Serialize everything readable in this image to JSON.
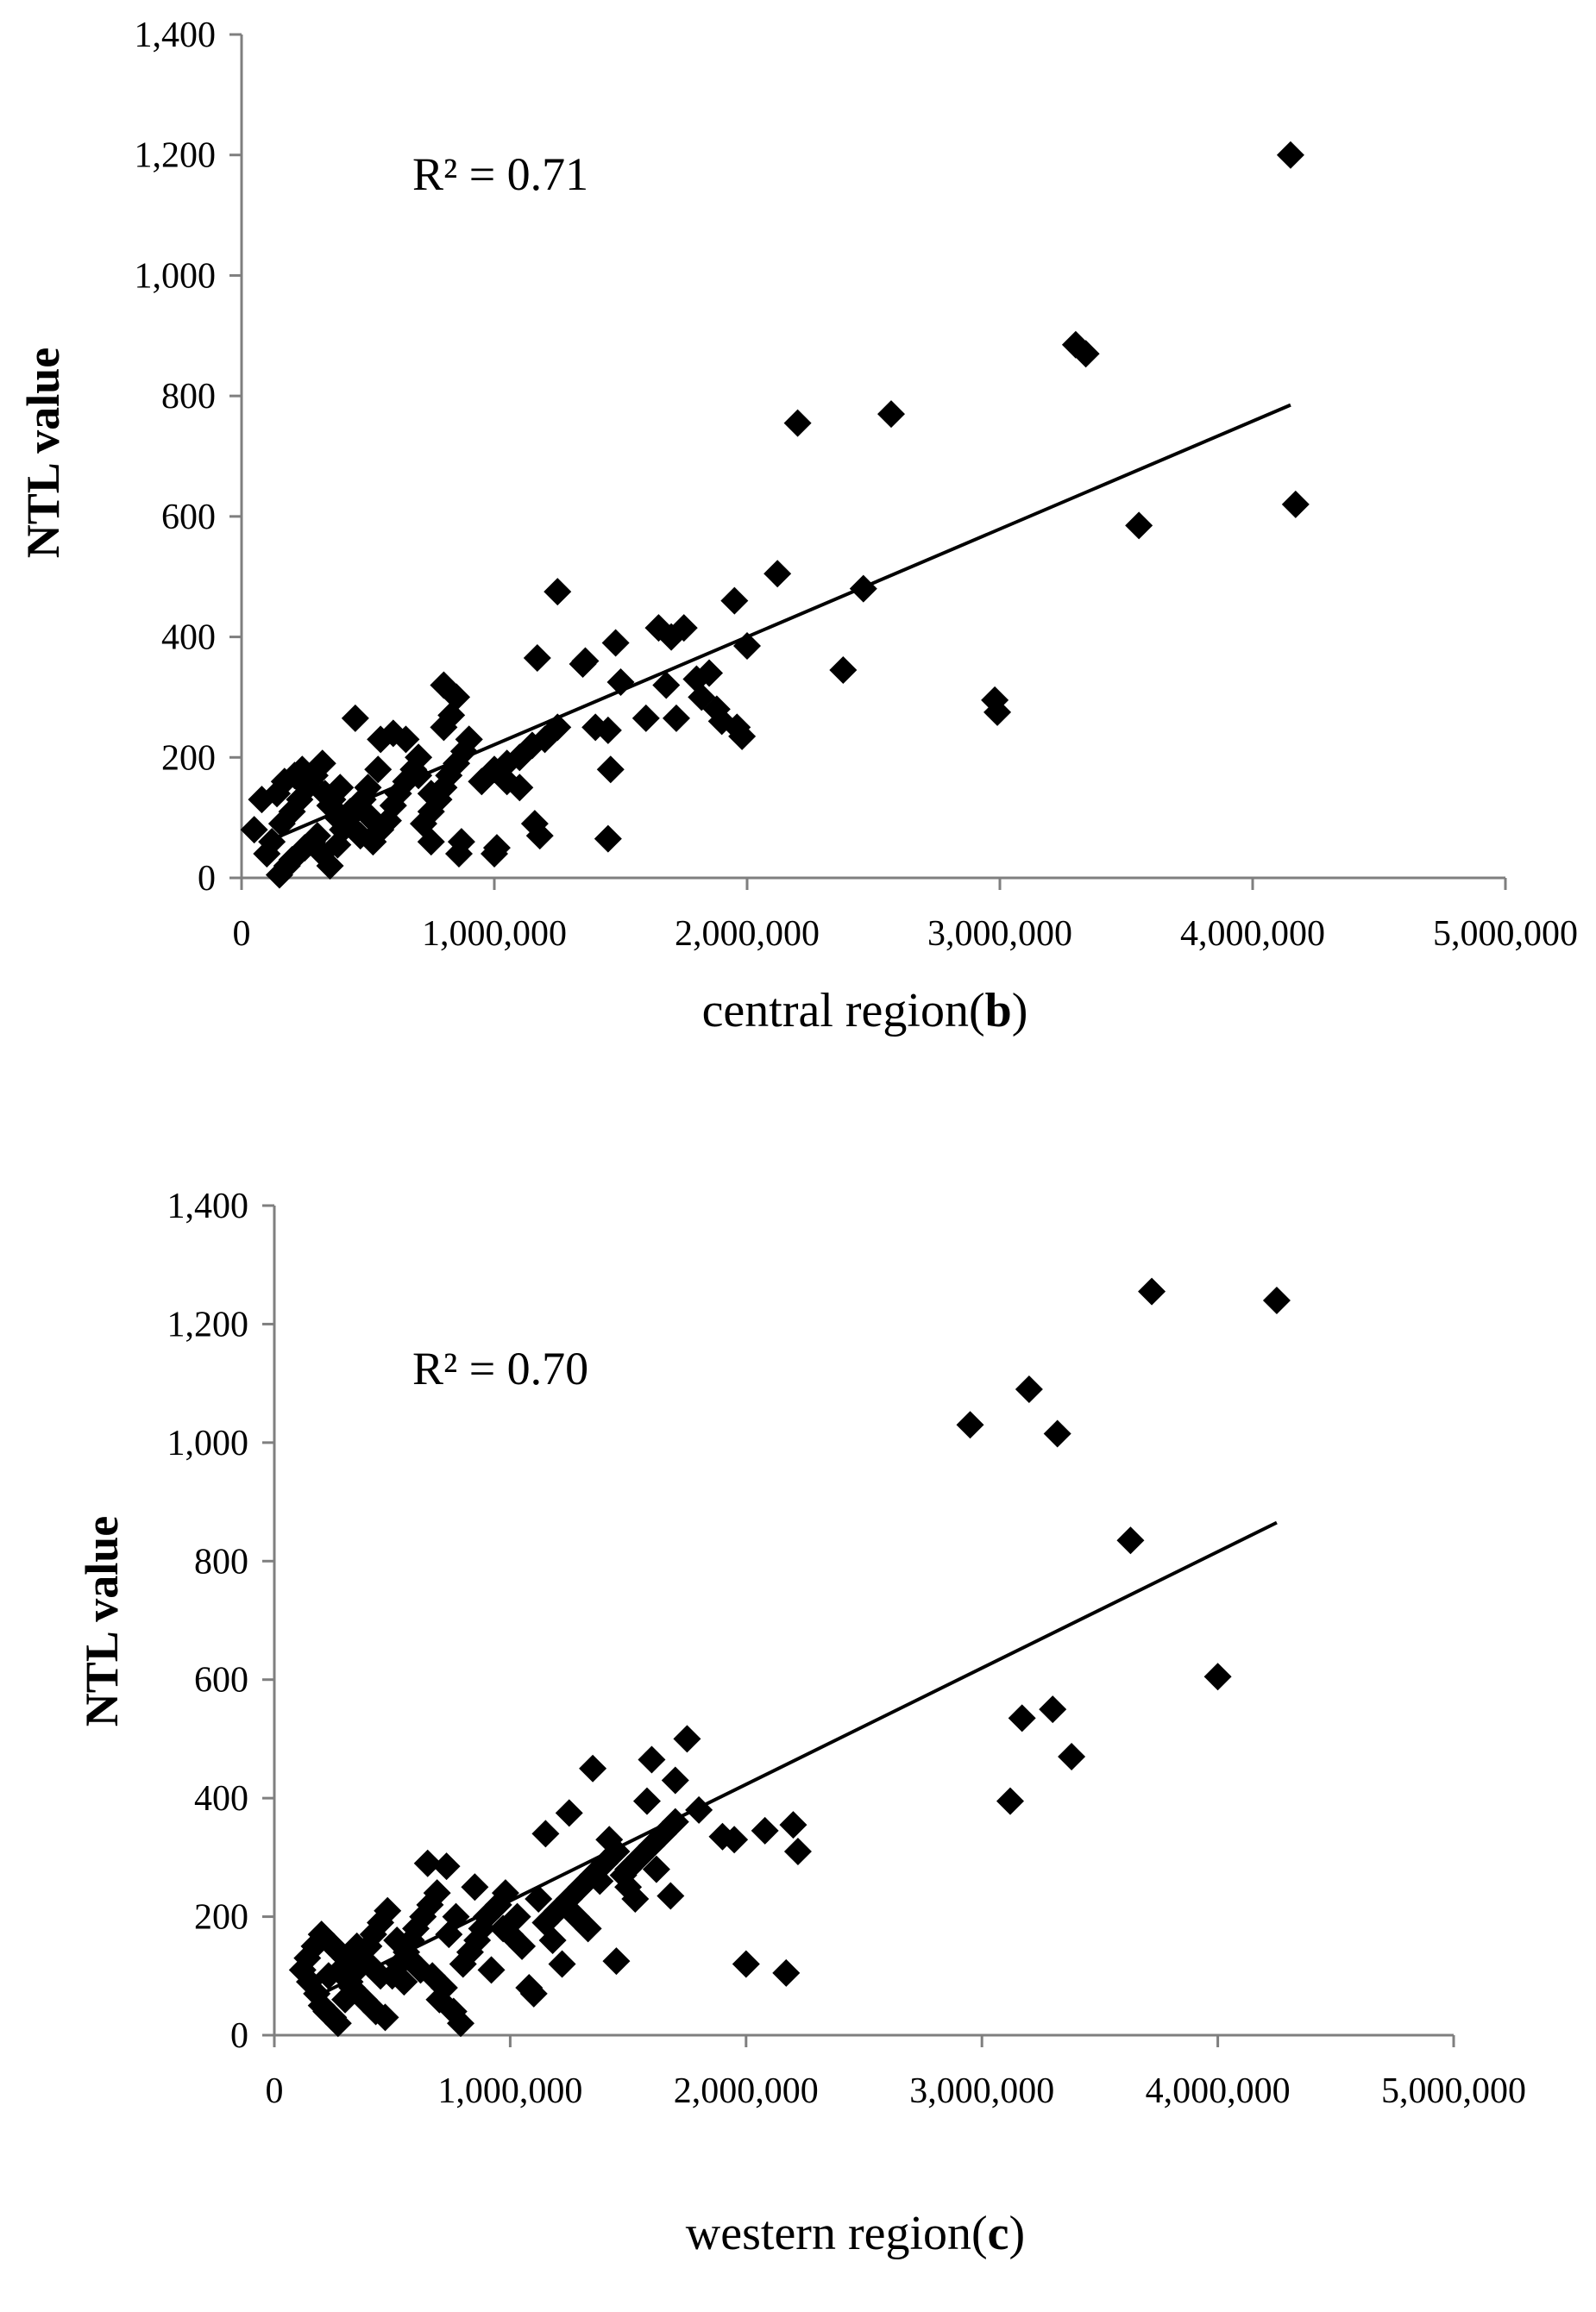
{
  "chart_data": [
    {
      "type": "scatter",
      "panel": "b",
      "xlabel_prefix": "central region(",
      "xlabel_bold": "b",
      "xlabel_suffix": ")",
      "ylabel": "NTL value",
      "annotation": "R² = 0.71",
      "xlim": [
        0,
        5000000
      ],
      "ylim": [
        0,
        1400
      ],
      "x_ticks": [
        "0",
        "1,000,000",
        "2,000,000",
        "3,000,000",
        "4,000,000",
        "5,000,000"
      ],
      "y_ticks": [
        "0",
        "200",
        "400",
        "600",
        "800",
        "1,000",
        "1,200",
        "1,400"
      ],
      "trendline": {
        "x": [
          100000,
          4150000
        ],
        "y": [
          60,
          785
        ]
      },
      "points": [
        [
          150000,
          5
        ],
        [
          180000,
          20
        ],
        [
          200000,
          30
        ],
        [
          250000,
          50
        ],
        [
          280000,
          60
        ],
        [
          300000,
          70
        ],
        [
          320000,
          40
        ],
        [
          350000,
          20
        ],
        [
          380000,
          55
        ],
        [
          400000,
          80
        ],
        [
          100000,
          40
        ],
        [
          120000,
          60
        ],
        [
          160000,
          90
        ],
        [
          200000,
          110
        ],
        [
          230000,
          130
        ],
        [
          260000,
          150
        ],
        [
          290000,
          170
        ],
        [
          320000,
          190
        ],
        [
          350000,
          120
        ],
        [
          380000,
          100
        ],
        [
          420000,
          90
        ],
        [
          450000,
          110
        ],
        [
          480000,
          130
        ],
        [
          500000,
          150
        ],
        [
          520000,
          60
        ],
        [
          550000,
          80
        ],
        [
          580000,
          95
        ],
        [
          600000,
          120
        ],
        [
          620000,
          140
        ],
        [
          650000,
          160
        ],
        [
          680000,
          180
        ],
        [
          700000,
          200
        ],
        [
          720000,
          90
        ],
        [
          750000,
          110
        ],
        [
          780000,
          130
        ],
        [
          800000,
          150
        ],
        [
          820000,
          170
        ],
        [
          850000,
          190
        ],
        [
          880000,
          210
        ],
        [
          900000,
          230
        ],
        [
          950000,
          160
        ],
        [
          1000000,
          180
        ],
        [
          1050000,
          190
        ],
        [
          1100000,
          200
        ],
        [
          1150000,
          220
        ],
        [
          1200000,
          230
        ],
        [
          1250000,
          250
        ],
        [
          450000,
          265
        ],
        [
          550000,
          230
        ],
        [
          600000,
          240
        ],
        [
          650000,
          230
        ],
        [
          700000,
          170
        ],
        [
          750000,
          140
        ],
        [
          800000,
          250
        ],
        [
          800000,
          320
        ],
        [
          850000,
          300
        ],
        [
          830000,
          270
        ],
        [
          900000,
          230
        ],
        [
          1050000,
          160
        ],
        [
          1100000,
          150
        ],
        [
          1160000,
          90
        ],
        [
          1180000,
          70
        ],
        [
          1000000,
          40
        ],
        [
          1010000,
          50
        ],
        [
          860000,
          40
        ],
        [
          870000,
          60
        ],
        [
          750000,
          60
        ],
        [
          1170000,
          365
        ],
        [
          1250000,
          475
        ],
        [
          1350000,
          355
        ],
        [
          1360000,
          360
        ],
        [
          1400000,
          250
        ],
        [
          1450000,
          245
        ],
        [
          1460000,
          180
        ],
        [
          1450000,
          65
        ],
        [
          1480000,
          390
        ],
        [
          1500000,
          325
        ],
        [
          1600000,
          265
        ],
        [
          1650000,
          415
        ],
        [
          1680000,
          320
        ],
        [
          1700000,
          400
        ],
        [
          1750000,
          415
        ],
        [
          1720000,
          265
        ],
        [
          1800000,
          330
        ],
        [
          1820000,
          300
        ],
        [
          1850000,
          340
        ],
        [
          1880000,
          280
        ],
        [
          1900000,
          260
        ],
        [
          1950000,
          460
        ],
        [
          1960000,
          250
        ],
        [
          2000000,
          385
        ],
        [
          1980000,
          235
        ],
        [
          2120000,
          505
        ],
        [
          2200000,
          755
        ],
        [
          2380000,
          345
        ],
        [
          2460000,
          480
        ],
        [
          2570000,
          770
        ],
        [
          2980000,
          295
        ],
        [
          2990000,
          275
        ],
        [
          3300000,
          885
        ],
        [
          3340000,
          870
        ],
        [
          3550000,
          585
        ],
        [
          4150000,
          1200
        ],
        [
          4170000,
          620
        ],
        [
          50000,
          80
        ],
        [
          80000,
          130
        ],
        [
          140000,
          140
        ],
        [
          170000,
          160
        ],
        [
          210000,
          170
        ],
        [
          240000,
          180
        ],
        [
          270000,
          160
        ],
        [
          330000,
          140
        ],
        [
          360000,
          130
        ],
        [
          390000,
          150
        ],
        [
          430000,
          110
        ],
        [
          470000,
          70
        ],
        [
          510000,
          100
        ],
        [
          540000,
          180
        ]
      ]
    },
    {
      "type": "scatter",
      "panel": "c",
      "xlabel_prefix": "western region(",
      "xlabel_bold": "c",
      "xlabel_suffix": ")",
      "ylabel": "NTL value",
      "annotation": "R² = 0.70",
      "xlim": [
        0,
        5000000
      ],
      "ylim": [
        0,
        1400
      ],
      "x_ticks": [
        "0",
        "1,000,000",
        "2,000,000",
        "3,000,000",
        "4,000,000",
        "5,000,000"
      ],
      "y_ticks": [
        "0",
        "200",
        "400",
        "600",
        "800",
        "1,000",
        "1,200",
        "1,400"
      ],
      "trendline": {
        "x": [
          150000,
          4250000
        ],
        "y": [
          60,
          865
        ]
      },
      "points": [
        [
          120000,
          110
        ],
        [
          150000,
          90
        ],
        [
          180000,
          70
        ],
        [
          200000,
          50
        ],
        [
          220000,
          40
        ],
        [
          250000,
          30
        ],
        [
          270000,
          20
        ],
        [
          300000,
          60
        ],
        [
          320000,
          90
        ],
        [
          350000,
          110
        ],
        [
          370000,
          130
        ],
        [
          400000,
          150
        ],
        [
          420000,
          170
        ],
        [
          450000,
          190
        ],
        [
          480000,
          210
        ],
        [
          500000,
          100
        ],
        [
          530000,
          120
        ],
        [
          560000,
          140
        ],
        [
          580000,
          160
        ],
        [
          600000,
          180
        ],
        [
          630000,
          200
        ],
        [
          660000,
          220
        ],
        [
          690000,
          240
        ],
        [
          700000,
          60
        ],
        [
          720000,
          80
        ],
        [
          760000,
          40
        ],
        [
          790000,
          20
        ],
        [
          800000,
          120
        ],
        [
          830000,
          140
        ],
        [
          860000,
          160
        ],
        [
          880000,
          180
        ],
        [
          900000,
          200
        ],
        [
          950000,
          220
        ],
        [
          980000,
          240
        ],
        [
          1000000,
          170
        ],
        [
          1050000,
          150
        ],
        [
          1080000,
          80
        ],
        [
          1100000,
          70
        ],
        [
          1150000,
          190
        ],
        [
          1200000,
          210
        ],
        [
          1250000,
          230
        ],
        [
          1300000,
          250
        ],
        [
          1350000,
          270
        ],
        [
          1400000,
          290
        ],
        [
          1450000,
          310
        ],
        [
          1500000,
          280
        ],
        [
          1550000,
          300
        ],
        [
          1600000,
          320
        ],
        [
          1650000,
          340
        ],
        [
          1700000,
          360
        ],
        [
          200000,
          170
        ],
        [
          250000,
          150
        ],
        [
          300000,
          130
        ],
        [
          350000,
          150
        ],
        [
          400000,
          120
        ],
        [
          450000,
          100
        ],
        [
          550000,
          90
        ],
        [
          650000,
          290
        ],
        [
          730000,
          285
        ],
        [
          1150000,
          340
        ],
        [
          1250000,
          375
        ],
        [
          1350000,
          450
        ],
        [
          1420000,
          330
        ],
        [
          1450000,
          125
        ],
        [
          1500000,
          250
        ],
        [
          1580000,
          395
        ],
        [
          1600000,
          465
        ],
        [
          1680000,
          235
        ],
        [
          1700000,
          430
        ],
        [
          1750000,
          500
        ],
        [
          1800000,
          380
        ],
        [
          1900000,
          335
        ],
        [
          1950000,
          330
        ],
        [
          2000000,
          120
        ],
        [
          2080000,
          345
        ],
        [
          2170000,
          105
        ],
        [
          2200000,
          355
        ],
        [
          2220000,
          310
        ],
        [
          2950000,
          1030
        ],
        [
          3120000,
          395
        ],
        [
          3170000,
          535
        ],
        [
          3200000,
          1090
        ],
        [
          3300000,
          550
        ],
        [
          3320000,
          1015
        ],
        [
          3380000,
          470
        ],
        [
          3630000,
          835
        ],
        [
          3720000,
          1255
        ],
        [
          4000000,
          605
        ],
        [
          4250000,
          1240
        ],
        [
          140000,
          130
        ],
        [
          170000,
          150
        ],
        [
          230000,
          100
        ],
        [
          280000,
          110
        ],
        [
          330000,
          80
        ],
        [
          380000,
          60
        ],
        [
          430000,
          40
        ],
        [
          470000,
          30
        ],
        [
          520000,
          160
        ],
        [
          570000,
          130
        ],
        [
          620000,
          110
        ],
        [
          670000,
          100
        ],
        [
          740000,
          170
        ],
        [
          770000,
          200
        ],
        [
          850000,
          250
        ],
        [
          920000,
          110
        ],
        [
          970000,
          180
        ],
        [
          1030000,
          200
        ],
        [
          1120000,
          230
        ],
        [
          1180000,
          160
        ],
        [
          1220000,
          120
        ],
        [
          1280000,
          200
        ],
        [
          1330000,
          180
        ],
        [
          1380000,
          260
        ],
        [
          1480000,
          270
        ],
        [
          1530000,
          230
        ],
        [
          1620000,
          280
        ]
      ]
    }
  ]
}
